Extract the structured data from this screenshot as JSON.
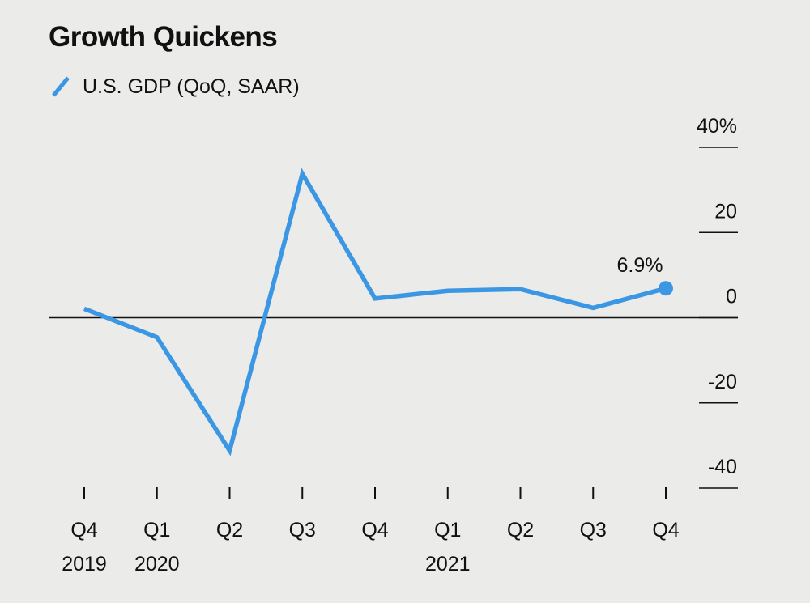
{
  "title": "Growth Quickens",
  "colors": {
    "series": "#3b97e3",
    "background": "#ebebea",
    "axis": "#111111"
  },
  "chart_data": {
    "type": "line",
    "title": "Growth Quickens",
    "xlabel": "",
    "ylabel": "",
    "x": [
      "Q4 2019",
      "Q1 2020",
      "Q2 2020",
      "Q3 2020",
      "Q4 2020",
      "Q1 2021",
      "Q2 2021",
      "Q3 2021",
      "Q4 2021"
    ],
    "x_tick_quarters": [
      "Q4",
      "Q1",
      "Q2",
      "Q3",
      "Q4",
      "Q1",
      "Q2",
      "Q3",
      "Q4"
    ],
    "x_tick_years": [
      "2019",
      "2020",
      "",
      "",
      "",
      "2021",
      "",
      "",
      ""
    ],
    "series": [
      {
        "name": "U.S. GDP (QoQ, SAAR)",
        "values": [
          2.1,
          -4.6,
          -31.2,
          33.8,
          4.5,
          6.3,
          6.7,
          2.3,
          6.9
        ]
      }
    ],
    "ylim": [
      -40,
      40
    ],
    "y_ticks": [
      40,
      20,
      0,
      -20,
      -40
    ],
    "y_tick_labels": [
      "40%",
      "20",
      "0",
      "-20",
      "-40"
    ],
    "y_axis_side": "right",
    "zero_line": true,
    "end_label": "6.9%",
    "legend_position": "top-left"
  }
}
